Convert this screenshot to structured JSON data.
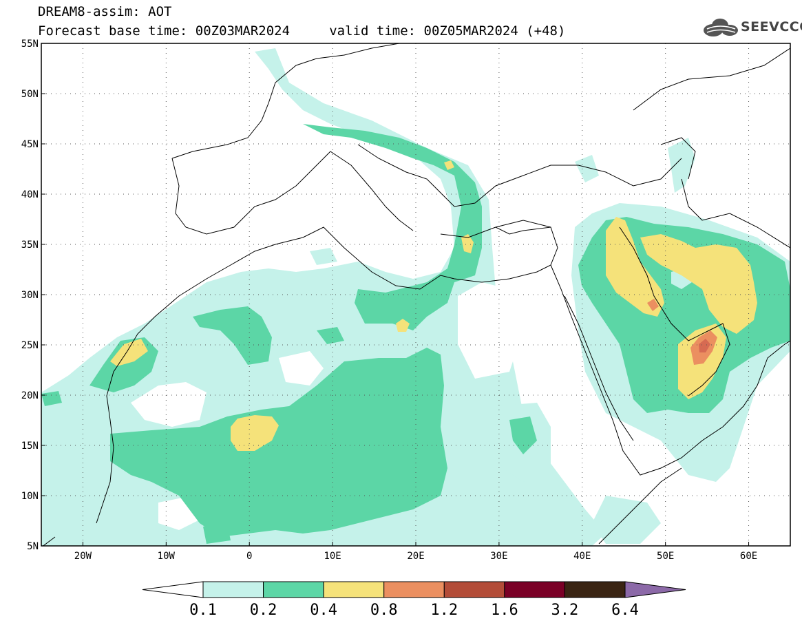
{
  "title": {
    "line1": "DREAM8-assim: AOT",
    "line2": "Forecast base time: 00Z03MAR2024     valid time: 00Z05MAR2024 (+48)"
  },
  "logo": {
    "text": "SEEVCCC",
    "icon": "cloud-icon",
    "color": "#555555"
  },
  "axes": {
    "lon_min": -25,
    "lon_max": 65,
    "lat_min": 5,
    "lat_max": 55,
    "x_ticks": [
      {
        "value": -20,
        "label": "20W"
      },
      {
        "value": -10,
        "label": "10W"
      },
      {
        "value": 0,
        "label": "0"
      },
      {
        "value": 10,
        "label": "10E"
      },
      {
        "value": 20,
        "label": "20E"
      },
      {
        "value": 30,
        "label": "30E"
      },
      {
        "value": 40,
        "label": "40E"
      },
      {
        "value": 50,
        "label": "50E"
      },
      {
        "value": 60,
        "label": "60E"
      }
    ],
    "y_ticks": [
      {
        "value": 55,
        "label": "55N"
      },
      {
        "value": 50,
        "label": "50N"
      },
      {
        "value": 45,
        "label": "45N"
      },
      {
        "value": 40,
        "label": "40N"
      },
      {
        "value": 35,
        "label": "35N"
      },
      {
        "value": 30,
        "label": "30N"
      },
      {
        "value": 25,
        "label": "25N"
      },
      {
        "value": 20,
        "label": "20N"
      },
      {
        "value": 15,
        "label": "15N"
      },
      {
        "value": 10,
        "label": "10N"
      },
      {
        "value": 5,
        "label": "5N"
      }
    ],
    "grid": "dotted"
  },
  "colorbar": {
    "bins": [
      {
        "color": "#c5f2ea"
      },
      {
        "color": "#5cd6a6"
      },
      {
        "color": "#f5e27a"
      },
      {
        "color": "#eb8f60"
      },
      {
        "color": "#b34c38"
      },
      {
        "color": "#7a0026"
      },
      {
        "color": "#3a2413"
      }
    ],
    "under_color": "#ffffff",
    "over_color": "#8c69a8",
    "labels": [
      "0.1",
      "0.2",
      "0.4",
      "0.8",
      "1.2",
      "1.6",
      "3.2",
      "6.4"
    ]
  },
  "colors": {
    "c1": "#c5f2ea",
    "c2": "#5cd6a6",
    "c3": "#f5e27a",
    "c4": "#eb8f60",
    "c5": "#d66a52"
  }
}
